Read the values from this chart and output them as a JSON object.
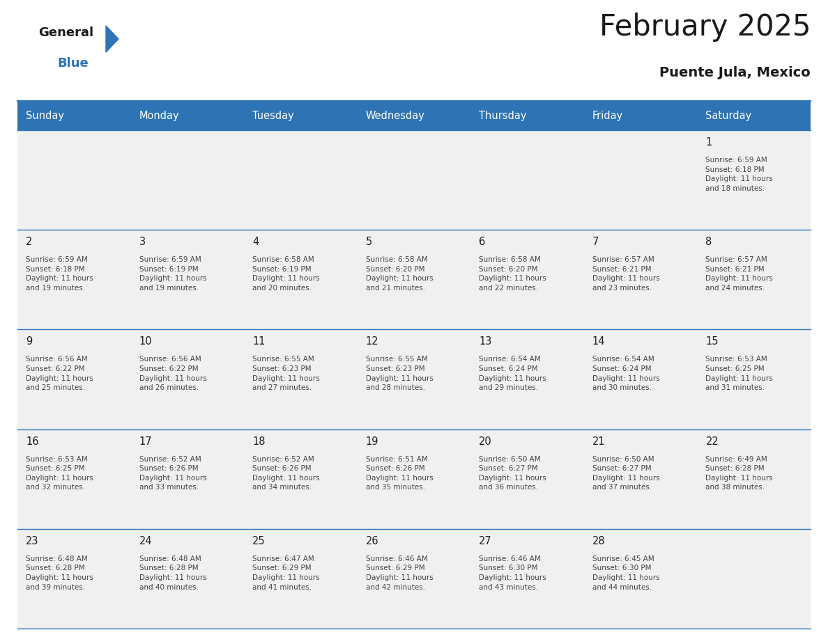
{
  "title": "February 2025",
  "subtitle": "Puente Jula, Mexico",
  "header_bg": "#2E74B5",
  "header_text_color": "#FFFFFF",
  "days_of_week": [
    "Sunday",
    "Monday",
    "Tuesday",
    "Wednesday",
    "Thursday",
    "Friday",
    "Saturday"
  ],
  "cell_bg": "#F0F0F0",
  "cell_border_color": "#2E74B5",
  "day_number_color": "#1F1F1F",
  "cell_text_color": "#444444",
  "calendar": [
    [
      null,
      null,
      null,
      null,
      null,
      null,
      {
        "day": "1",
        "sunrise": "6:59 AM",
        "sunset": "6:18 PM",
        "daylight": "11 hours\nand 18 minutes."
      }
    ],
    [
      {
        "day": "2",
        "sunrise": "6:59 AM",
        "sunset": "6:18 PM",
        "daylight": "11 hours\nand 19 minutes."
      },
      {
        "day": "3",
        "sunrise": "6:59 AM",
        "sunset": "6:19 PM",
        "daylight": "11 hours\nand 19 minutes."
      },
      {
        "day": "4",
        "sunrise": "6:58 AM",
        "sunset": "6:19 PM",
        "daylight": "11 hours\nand 20 minutes."
      },
      {
        "day": "5",
        "sunrise": "6:58 AM",
        "sunset": "6:20 PM",
        "daylight": "11 hours\nand 21 minutes."
      },
      {
        "day": "6",
        "sunrise": "6:58 AM",
        "sunset": "6:20 PM",
        "daylight": "11 hours\nand 22 minutes."
      },
      {
        "day": "7",
        "sunrise": "6:57 AM",
        "sunset": "6:21 PM",
        "daylight": "11 hours\nand 23 minutes."
      },
      {
        "day": "8",
        "sunrise": "6:57 AM",
        "sunset": "6:21 PM",
        "daylight": "11 hours\nand 24 minutes."
      }
    ],
    [
      {
        "day": "9",
        "sunrise": "6:56 AM",
        "sunset": "6:22 PM",
        "daylight": "11 hours\nand 25 minutes."
      },
      {
        "day": "10",
        "sunrise": "6:56 AM",
        "sunset": "6:22 PM",
        "daylight": "11 hours\nand 26 minutes."
      },
      {
        "day": "11",
        "sunrise": "6:55 AM",
        "sunset": "6:23 PM",
        "daylight": "11 hours\nand 27 minutes."
      },
      {
        "day": "12",
        "sunrise": "6:55 AM",
        "sunset": "6:23 PM",
        "daylight": "11 hours\nand 28 minutes."
      },
      {
        "day": "13",
        "sunrise": "6:54 AM",
        "sunset": "6:24 PM",
        "daylight": "11 hours\nand 29 minutes."
      },
      {
        "day": "14",
        "sunrise": "6:54 AM",
        "sunset": "6:24 PM",
        "daylight": "11 hours\nand 30 minutes."
      },
      {
        "day": "15",
        "sunrise": "6:53 AM",
        "sunset": "6:25 PM",
        "daylight": "11 hours\nand 31 minutes."
      }
    ],
    [
      {
        "day": "16",
        "sunrise": "6:53 AM",
        "sunset": "6:25 PM",
        "daylight": "11 hours\nand 32 minutes."
      },
      {
        "day": "17",
        "sunrise": "6:52 AM",
        "sunset": "6:26 PM",
        "daylight": "11 hours\nand 33 minutes."
      },
      {
        "day": "18",
        "sunrise": "6:52 AM",
        "sunset": "6:26 PM",
        "daylight": "11 hours\nand 34 minutes."
      },
      {
        "day": "19",
        "sunrise": "6:51 AM",
        "sunset": "6:26 PM",
        "daylight": "11 hours\nand 35 minutes."
      },
      {
        "day": "20",
        "sunrise": "6:50 AM",
        "sunset": "6:27 PM",
        "daylight": "11 hours\nand 36 minutes."
      },
      {
        "day": "21",
        "sunrise": "6:50 AM",
        "sunset": "6:27 PM",
        "daylight": "11 hours\nand 37 minutes."
      },
      {
        "day": "22",
        "sunrise": "6:49 AM",
        "sunset": "6:28 PM",
        "daylight": "11 hours\nand 38 minutes."
      }
    ],
    [
      {
        "day": "23",
        "sunrise": "6:48 AM",
        "sunset": "6:28 PM",
        "daylight": "11 hours\nand 39 minutes."
      },
      {
        "day": "24",
        "sunrise": "6:48 AM",
        "sunset": "6:28 PM",
        "daylight": "11 hours\nand 40 minutes."
      },
      {
        "day": "25",
        "sunrise": "6:47 AM",
        "sunset": "6:29 PM",
        "daylight": "11 hours\nand 41 minutes."
      },
      {
        "day": "26",
        "sunrise": "6:46 AM",
        "sunset": "6:29 PM",
        "daylight": "11 hours\nand 42 minutes."
      },
      {
        "day": "27",
        "sunrise": "6:46 AM",
        "sunset": "6:30 PM",
        "daylight": "11 hours\nand 43 minutes."
      },
      {
        "day": "28",
        "sunrise": "6:45 AM",
        "sunset": "6:30 PM",
        "daylight": "11 hours\nand 44 minutes."
      },
      null
    ]
  ]
}
